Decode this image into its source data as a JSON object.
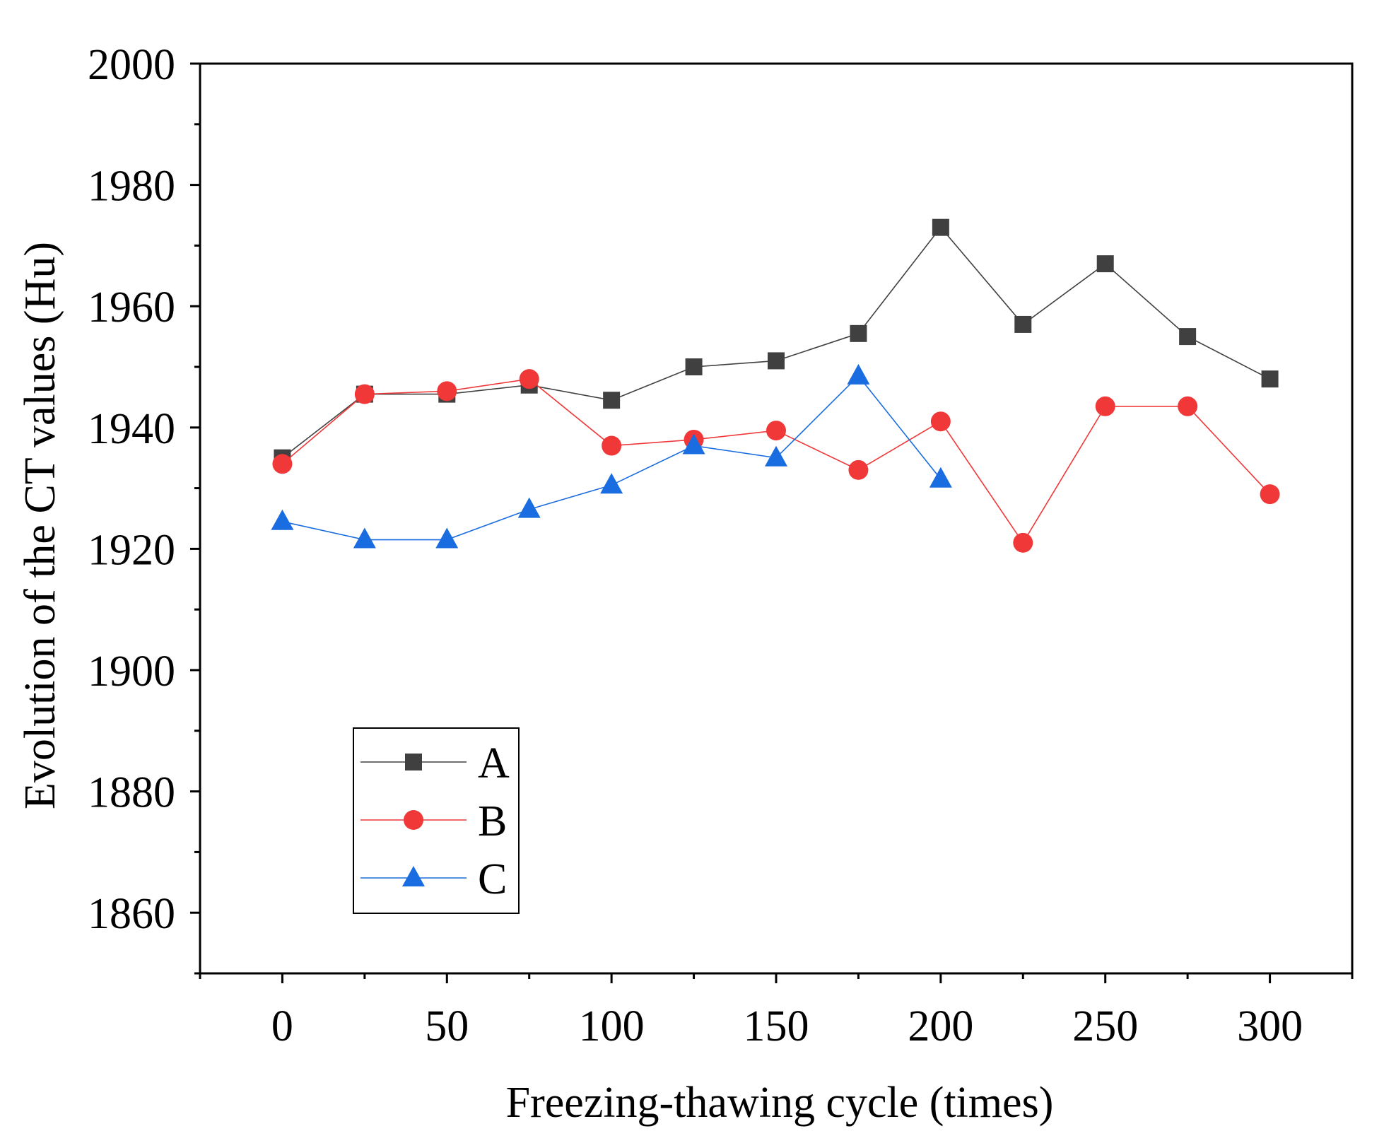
{
  "chart_data": {
    "type": "line",
    "xlabel": "Freezing-thawing cycle (times)",
    "ylabel": "Evolution of the CT values (Hu)",
    "xlim": [
      -25,
      325
    ],
    "ylim": [
      1850,
      2000
    ],
    "xticks": [
      0,
      50,
      100,
      150,
      200,
      250,
      300
    ],
    "yticks": [
      1860,
      1880,
      1900,
      1920,
      1940,
      1960,
      1980,
      2000
    ],
    "xtick_labels": [
      "0",
      "50",
      "100",
      "150",
      "200",
      "250",
      "300"
    ],
    "ytick_labels": [
      "1860",
      "1880",
      "1900",
      "1920",
      "1940",
      "1960",
      "1980",
      "2000"
    ],
    "legend_position": "bottom-left",
    "series": [
      {
        "name": "A",
        "marker": "square",
        "color": "#404040",
        "x": [
          0,
          25,
          50,
          75,
          100,
          125,
          150,
          175,
          200,
          225,
          250,
          275,
          300
        ],
        "y": [
          1935,
          1945.5,
          1945.5,
          1947,
          1944.5,
          1950,
          1951,
          1955.5,
          1973,
          1957,
          1967,
          1955,
          1948
        ]
      },
      {
        "name": "B",
        "marker": "circle",
        "color": "#f03838",
        "x": [
          0,
          25,
          50,
          75,
          100,
          125,
          150,
          175,
          200,
          225,
          250,
          275,
          300
        ],
        "y": [
          1934,
          1945.5,
          1946,
          1948,
          1937,
          1938,
          1939.5,
          1933,
          1941,
          1921,
          1943.5,
          1943.5,
          1929
        ]
      },
      {
        "name": "C",
        "marker": "triangle",
        "color": "#1a6de0",
        "x": [
          0,
          25,
          50,
          75,
          100,
          125,
          150,
          175,
          200
        ],
        "y": [
          1924.5,
          1921.5,
          1921.5,
          1926.5,
          1930.5,
          1937,
          1935,
          1948.5,
          1931.5
        ]
      }
    ]
  }
}
